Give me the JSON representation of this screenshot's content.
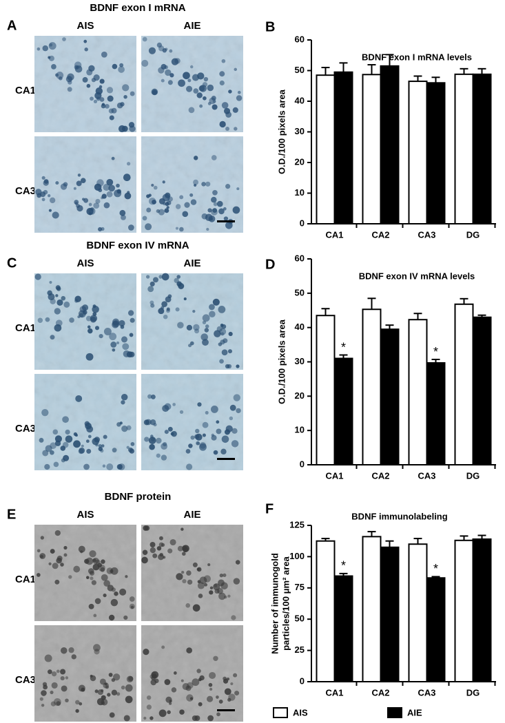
{
  "panels": [
    {
      "letter": "A",
      "title": "BDNF exon I mRNA",
      "columns": [
        "AIS",
        "AIE"
      ],
      "rows": [
        "CA1",
        "CA3"
      ]
    },
    {
      "letter": "C",
      "title": "BDNF exon IV mRNA",
      "columns": [
        "AIS",
        "AIE"
      ],
      "rows": [
        "CA1",
        "CA3"
      ]
    },
    {
      "letter": "E",
      "title": "BDNF protein",
      "columns": [
        "AIS",
        "AIE"
      ],
      "rows": [
        "CA1",
        "CA3"
      ]
    }
  ],
  "chart_data": [
    {
      "letter": "B",
      "type": "bar",
      "title": "BDNF exon I mRNA levels",
      "ylabel": [
        "O.D./100 pixels area"
      ],
      "categories": [
        "CA1",
        "CA2",
        "CA3",
        "DG"
      ],
      "series": [
        {
          "color": "#ffffff",
          "values": [
            48.5,
            48.7,
            46.5,
            48.8
          ],
          "errors": [
            2.5,
            3.2,
            1.7,
            1.8
          ]
        },
        {
          "color": "#000000",
          "values": [
            49.5,
            51.5,
            46,
            48.8
          ],
          "errors": [
            3,
            3.7,
            1.8,
            1.8
          ]
        }
      ],
      "ylim": [
        0,
        60
      ],
      "yticks": [
        0,
        10,
        20,
        30,
        40,
        50,
        60
      ]
    },
    {
      "letter": "D",
      "type": "bar",
      "title": "BDNF exon IV mRNA levels",
      "ylabel": [
        "O.D./100 pixels area"
      ],
      "categories": [
        "CA1",
        "CA2",
        "CA3",
        "DG"
      ],
      "series": [
        {
          "color": "#ffffff",
          "values": [
            43.5,
            45.3,
            42.3,
            46.8
          ],
          "errors": [
            2,
            3.2,
            1.8,
            1.6
          ]
        },
        {
          "color": "#000000",
          "values": [
            31,
            39.5,
            29.7,
            43
          ],
          "errors": [
            1,
            1.2,
            1,
            0.6
          ],
          "annotations": [
            "*",
            null,
            "*",
            null
          ]
        }
      ],
      "ylim": [
        0,
        60
      ],
      "yticks": [
        0,
        10,
        20,
        30,
        40,
        50,
        60
      ]
    },
    {
      "letter": "F",
      "type": "bar",
      "title": "BDNF immunolabeling",
      "ylabel": [
        "Number of immunogold",
        "particles/100 μm² area"
      ],
      "categories": [
        "CA1",
        "CA2",
        "CA3",
        "DG"
      ],
      "series": [
        {
          "name": "AIS",
          "color": "#ffffff",
          "values": [
            112.5,
            116,
            110,
            113
          ],
          "errors": [
            2,
            4,
            4.5,
            3.5
          ]
        },
        {
          "name": "AIE",
          "color": "#000000",
          "values": [
            84.5,
            107.5,
            83,
            114
          ],
          "errors": [
            2,
            5,
            1,
            3
          ],
          "annotations": [
            "*",
            null,
            "*",
            null
          ]
        }
      ],
      "ylim": [
        0,
        125
      ],
      "yticks": [
        0,
        25,
        50,
        75,
        100,
        125
      ]
    }
  ]
}
